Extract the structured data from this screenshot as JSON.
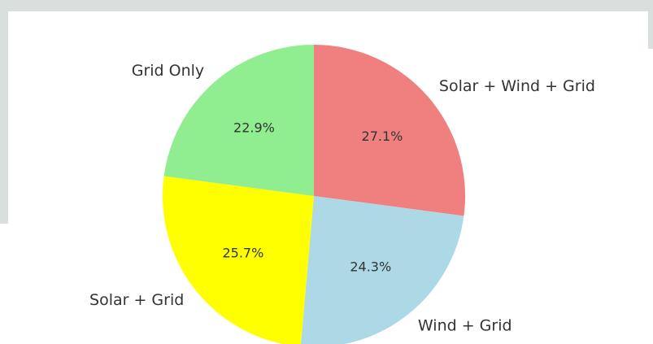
{
  "chart_data": {
    "type": "pie",
    "title": "",
    "start_angle_deg": 90,
    "direction": "clockwise",
    "slices": [
      {
        "label": "Solar + Wind + Grid",
        "value": 27.1,
        "pct_label": "27.1%",
        "color": "#f08080"
      },
      {
        "label": "Wind + Grid",
        "value": 24.3,
        "pct_label": "24.3%",
        "color": "#add8e6"
      },
      {
        "label": "Solar + Grid",
        "value": 25.7,
        "pct_label": "25.7%",
        "color": "#ffff00"
      },
      {
        "label": "Grid Only",
        "value": 22.9,
        "pct_label": "22.9%",
        "color": "#90ee90"
      }
    ]
  }
}
